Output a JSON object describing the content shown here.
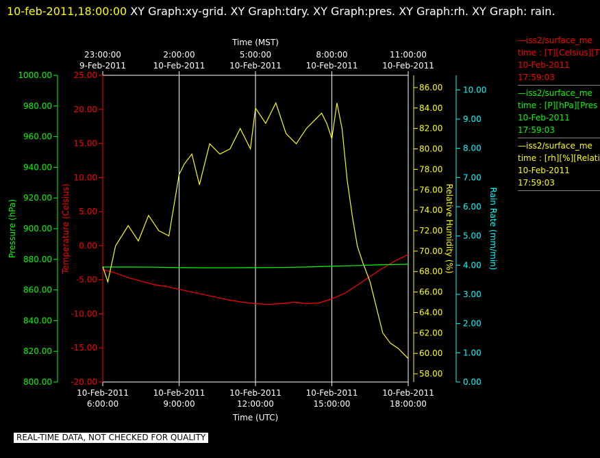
{
  "header": {
    "timestamp": "10-feb-2011,18:00:00",
    "title": " XY Graph:xy-grid.  XY Graph:tdry.  XY Graph:pres.  XY Graph:rh.  XY Graph: rain."
  },
  "legend": [
    {
      "line": "—iss2/surface_me",
      "var": "time : [T][Celsius][T",
      "date": "10-Feb-2011",
      "time": "17:59:03",
      "color": "#ff0000"
    },
    {
      "line": "—iss2/surface_me",
      "var": "time : [P][hPa][Pres",
      "date": "10-Feb-2011",
      "time": "17:59:03",
      "color": "#00ff00"
    },
    {
      "line": "—iss2/surface_me",
      "var": "time : [rh][%][Relati",
      "date": "10-Feb-2011",
      "time": "17:59:03",
      "color": "#ffff00"
    }
  ],
  "banner": "REAL-TIME DATA, NOT CHECKED FOR QUALITY",
  "chart_data": {
    "type": "line",
    "top_axis_title": "Time (MST)",
    "bottom_axis_title": "Time (UTC)",
    "top_ticks": [
      {
        "time": "23:00:00",
        "date": "9-Feb-2011"
      },
      {
        "time": "2:00:00",
        "date": "10-Feb-2011"
      },
      {
        "time": "5:00:00",
        "date": "10-Feb-2011"
      },
      {
        "time": "8:00:00",
        "date": "10-Feb-2011"
      },
      {
        "time": "11:00:00",
        "date": "10-Feb-2011"
      }
    ],
    "bottom_ticks": [
      {
        "date": "10-Feb-2011",
        "time": "6:00:00"
      },
      {
        "date": "10-Feb-2011",
        "time": "9:00:00"
      },
      {
        "date": "10-Feb-2011",
        "time": "12:00:00"
      },
      {
        "date": "10-Feb-2011",
        "time": "15:00:00"
      },
      {
        "date": "10-Feb-2011",
        "time": "18:00:00"
      }
    ],
    "x_hours_utc": [
      6,
      18
    ],
    "grid": true,
    "axes": {
      "pressure": {
        "label": "Pressure (hPa)",
        "color": "#00ff00",
        "min": 800,
        "max": 1000,
        "ticks": [
          "1000.00",
          "980.00",
          "960.00",
          "940.00",
          "920.00",
          "900.00",
          "880.00",
          "860.00",
          "840.00",
          "820.00",
          "800.00"
        ]
      },
      "temperature": {
        "label": "Temperature (Celsius)",
        "color": "#ff0000",
        "min": -20,
        "max": 25,
        "ticks": [
          "25.00",
          "20.00",
          "15.00",
          "10.00",
          "5.00",
          "0.00",
          "-5.00",
          "-10.00",
          "-15.00",
          "-20.00"
        ]
      },
      "rh": {
        "label": "Relative Humidity (%)",
        "color": "#ffff00",
        "min": 57.2,
        "max": 87.2,
        "ticks": [
          "86.00",
          "84.00",
          "82.00",
          "80.00",
          "78.00",
          "76.00",
          "74.00",
          "72.00",
          "70.00",
          "68.00",
          "66.00",
          "64.00",
          "62.00",
          "60.00",
          "58.00"
        ]
      },
      "rain": {
        "label": "Rain Rate (mm/min)",
        "color": "#00ffff",
        "min": 0,
        "max": 10.5,
        "ticks": [
          "10.00",
          "9.00",
          "8.00",
          "7.00",
          "6.00",
          "5.00",
          "4.00",
          "3.00",
          "2.00",
          "1.00",
          "0.00"
        ]
      }
    },
    "series": [
      {
        "name": "T (Celsius)",
        "axis": "temperature",
        "color": "#ff0000",
        "x": [
          6.0,
          6.5,
          7.0,
          7.5,
          8.0,
          8.5,
          9.0,
          9.5,
          10.0,
          10.5,
          11.0,
          11.5,
          12.0,
          12.5,
          13.0,
          13.5,
          14.0,
          14.5,
          15.0,
          15.5,
          16.0,
          16.5,
          17.0,
          17.5,
          18.0
        ],
        "y": [
          -3.5,
          -4.0,
          -4.7,
          -5.2,
          -5.7,
          -6.0,
          -6.4,
          -6.8,
          -7.2,
          -7.6,
          -8.0,
          -8.3,
          -8.5,
          -8.6,
          -8.5,
          -8.3,
          -8.5,
          -8.4,
          -7.8,
          -7.0,
          -5.8,
          -4.5,
          -3.3,
          -2.2,
          -1.3
        ]
      },
      {
        "name": "P (hPa)",
        "axis": "pressure",
        "color": "#00ff00",
        "x": [
          6.0,
          7.0,
          8.0,
          9.0,
          10.0,
          11.0,
          12.0,
          13.0,
          14.0,
          15.0,
          16.0,
          17.0,
          18.0
        ],
        "y": [
          875.0,
          875.0,
          874.9,
          874.6,
          874.5,
          874.5,
          874.6,
          874.7,
          875.0,
          875.5,
          876.0,
          876.5,
          876.8
        ]
      },
      {
        "name": "rh (%)",
        "axis": "rh",
        "color": "#ffff00",
        "x": [
          6.0,
          6.2,
          6.5,
          7.0,
          7.4,
          7.8,
          8.2,
          8.6,
          9.0,
          9.2,
          9.5,
          9.8,
          10.2,
          10.6,
          11.0,
          11.4,
          11.8,
          12.0,
          12.4,
          12.8,
          13.2,
          13.6,
          14.0,
          14.4,
          14.6,
          14.8,
          15.0,
          15.2,
          15.4,
          15.6,
          15.8,
          16.0,
          16.2,
          16.5,
          16.8,
          17.0,
          17.3,
          17.6,
          18.0
        ],
        "y": [
          68.5,
          67.0,
          70.5,
          72.5,
          71.0,
          73.5,
          72.0,
          71.5,
          77.5,
          78.5,
          79.5,
          76.5,
          80.5,
          79.5,
          80.0,
          82.0,
          80.0,
          84.0,
          82.5,
          84.5,
          81.5,
          80.5,
          82.0,
          83.0,
          83.5,
          82.5,
          81.0,
          84.5,
          82.0,
          77.0,
          73.5,
          70.5,
          69.0,
          67.0,
          64.0,
          62.0,
          61.0,
          60.5,
          59.5
        ]
      }
    ]
  }
}
